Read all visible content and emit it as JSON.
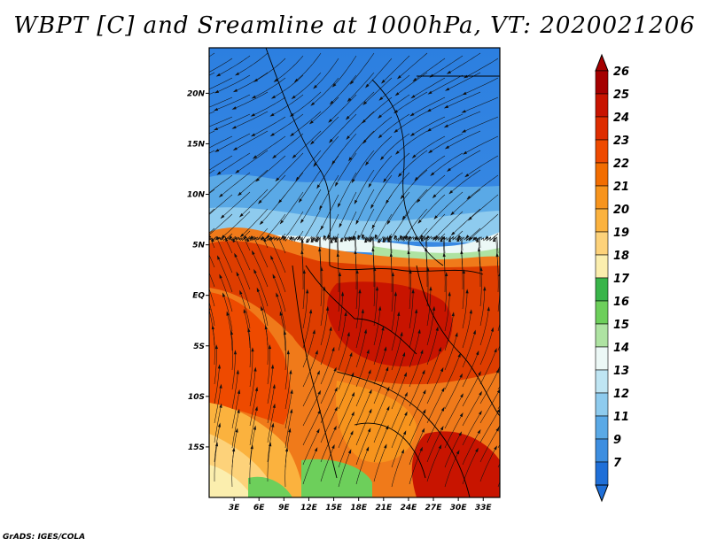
{
  "title": "WBPT [C] and Sreamline at 1000hPa, VT: 2020021206",
  "credit": "GrADS: IGES/COLA",
  "map": {
    "lon_range": [
      0,
      35
    ],
    "lat_range": [
      -20,
      24.5
    ],
    "lon_ticks": [
      "3E",
      "6E",
      "9E",
      "12E",
      "15E",
      "18E",
      "21E",
      "24E",
      "27E",
      "30E",
      "33E"
    ],
    "lon_tick_values": [
      3,
      6,
      9,
      12,
      15,
      18,
      21,
      24,
      27,
      30,
      33
    ],
    "lat_ticks": [
      "20N",
      "15N",
      "10N",
      "5N",
      "EQ",
      "5S",
      "10S",
      "15S"
    ],
    "lat_tick_values": [
      20,
      15,
      10,
      5,
      0,
      -5,
      -10,
      -15
    ]
  },
  "colorbar": {
    "labels": [
      "26",
      "25",
      "24",
      "23",
      "22",
      "21",
      "20",
      "19",
      "18",
      "17",
      "16",
      "15",
      "14",
      "13",
      "12",
      "11",
      "9",
      "7"
    ],
    "colors": [
      "#a50000",
      "#c81400",
      "#de2d00",
      "#ee4a00",
      "#f26d00",
      "#f7941d",
      "#fbb23e",
      "#fdd27a",
      "#fbeeae",
      "#39b54a",
      "#6dcf5b",
      "#aee3a2",
      "#ecf8f6",
      "#bfe5f3",
      "#8ecbee",
      "#5aa9e6",
      "#3d8ee0",
      "#1f6fd8"
    ]
  }
}
